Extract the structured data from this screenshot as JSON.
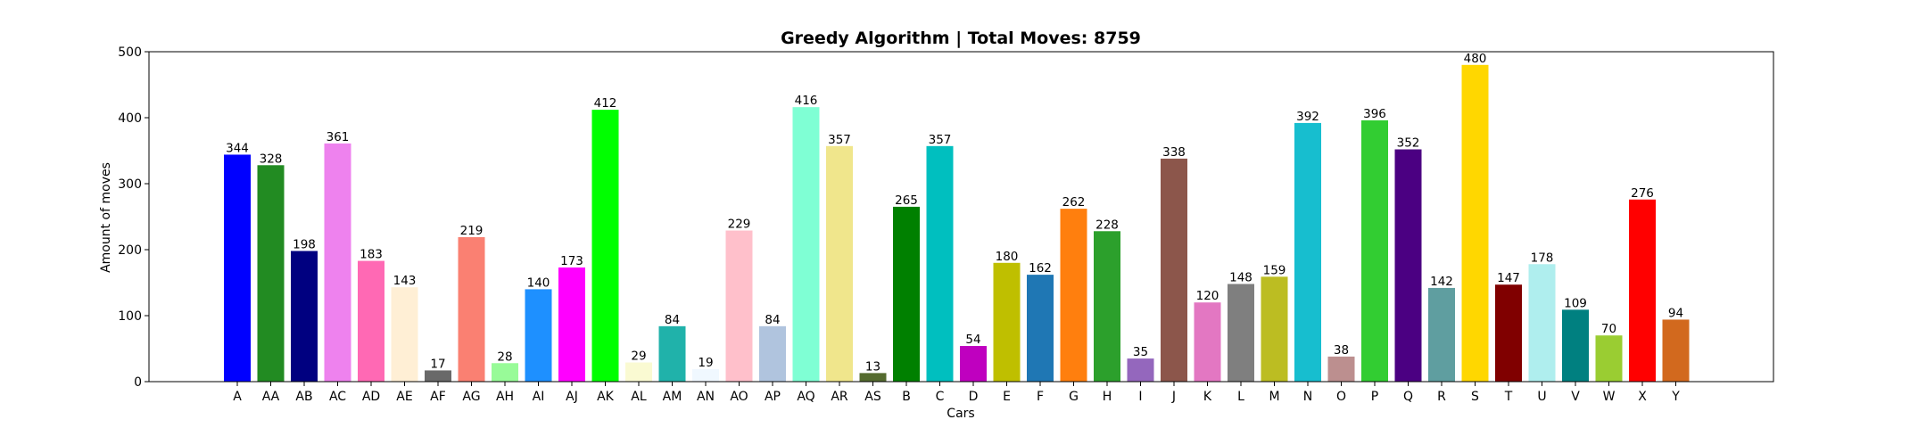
{
  "chart_data": {
    "type": "bar",
    "title": "Greedy Algorithm | Total Moves: 8759",
    "xlabel": "Cars",
    "ylabel": "Amount of moves",
    "ylim": [
      0,
      500
    ],
    "yticks": [
      0,
      100,
      200,
      300,
      400,
      500
    ],
    "grid": false,
    "legend": "none",
    "categories": [
      "A",
      "AA",
      "AB",
      "AC",
      "AD",
      "AE",
      "AF",
      "AG",
      "AH",
      "AI",
      "AJ",
      "AK",
      "AL",
      "AM",
      "AN",
      "AO",
      "AP",
      "AQ",
      "AR",
      "AS",
      "B",
      "C",
      "D",
      "E",
      "F",
      "G",
      "H",
      "I",
      "J",
      "K",
      "L",
      "M",
      "N",
      "O",
      "P",
      "Q",
      "R",
      "S",
      "T",
      "U",
      "V",
      "W",
      "X",
      "Y"
    ],
    "values": [
      344,
      328,
      198,
      361,
      183,
      143,
      17,
      219,
      28,
      140,
      173,
      412,
      29,
      84,
      19,
      229,
      84,
      416,
      357,
      13,
      265,
      357,
      54,
      180,
      162,
      262,
      228,
      35,
      338,
      120,
      148,
      159,
      392,
      38,
      396,
      352,
      142,
      480,
      147,
      178,
      109,
      70,
      276,
      94
    ],
    "colors": [
      "#0000ff",
      "#228b22",
      "#000080",
      "#ee82ee",
      "#ff69b4",
      "#ffefd5",
      "#696969",
      "#fa8072",
      "#98fb98",
      "#1e90ff",
      "#ff00ff",
      "#00ff00",
      "#fafad2",
      "#20b2aa",
      "#f0f8ff",
      "#ffc0cb",
      "#b0c4de",
      "#7fffd4",
      "#f0e68c",
      "#556b2f",
      "#008000",
      "#00bfbf",
      "#bf00bf",
      "#bfbf00",
      "#1f77b4",
      "#ff7f0e",
      "#2ca02c",
      "#9467bd",
      "#8c564b",
      "#e377c2",
      "#7f7f7f",
      "#bcbd22",
      "#17becf",
      "#bc8f8f",
      "#32cd32",
      "#4b0082",
      "#5f9ea0",
      "#ffd700",
      "#800000",
      "#afeeee",
      "#008080",
      "#9acd32",
      "#ff0000",
      "#d2691e"
    ]
  }
}
